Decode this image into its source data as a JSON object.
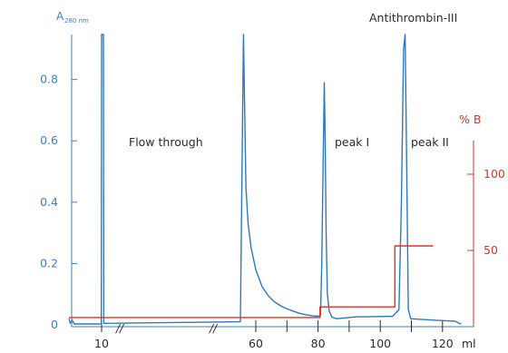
{
  "chart_data": {
    "type": "line",
    "title": "Antithrombin-III",
    "y_left": {
      "label_main": "A",
      "label_sub": "280 nm",
      "ticks": [
        0,
        0.2,
        0.4,
        0.6,
        0.8
      ],
      "tick_labels": [
        "0",
        "0.2",
        "0.4",
        "0.6",
        "0.8"
      ],
      "range": [
        0,
        0.95
      ]
    },
    "y_right": {
      "label": "% B",
      "ticks": [
        50,
        100
      ],
      "tick_labels": [
        "50",
        "100"
      ],
      "range": [
        0,
        122
      ]
    },
    "x_axis": {
      "unit": "ml",
      "tick_labels": [
        {
          "value": 10,
          "label": "10"
        },
        {
          "value": 60,
          "label": "60"
        },
        {
          "value": 80,
          "label": "80"
        },
        {
          "value": 100,
          "label": "100"
        },
        {
          "value": 120,
          "label": "120"
        }
      ],
      "minor_ticks": [
        70,
        90,
        110
      ],
      "break_marks": [
        "//",
        "//"
      ]
    },
    "annotations": [
      {
        "text": "Flow through",
        "x": 27,
        "y": 0.6
      },
      {
        "text": "peak I",
        "x": 83,
        "y": 0.6
      },
      {
        "text": "peak II",
        "x": 107,
        "y": 0.6
      }
    ],
    "series": [
      {
        "axis": "left",
        "color": "#2f78bf",
        "points": [
          [
            -2,
            0.02
          ],
          [
            -1.5,
            0.005
          ],
          [
            -0.8,
            0.015
          ],
          [
            0,
            0.003
          ],
          [
            9.9,
            0.003
          ],
          [
            10,
            0.95
          ],
          [
            10.6,
            0.95
          ],
          [
            10.7,
            0.005
          ],
          [
            55,
            0.01
          ],
          [
            56,
            0.95
          ],
          [
            56.8,
            0.45
          ],
          [
            57.5,
            0.33
          ],
          [
            58.5,
            0.25
          ],
          [
            60,
            0.18
          ],
          [
            62,
            0.125
          ],
          [
            64,
            0.095
          ],
          [
            66,
            0.075
          ],
          [
            68,
            0.062
          ],
          [
            70,
            0.052
          ],
          [
            72,
            0.045
          ],
          [
            74,
            0.038
          ],
          [
            76,
            0.033
          ],
          [
            78,
            0.03
          ],
          [
            80,
            0.028
          ],
          [
            80.8,
            0.03
          ],
          [
            81.2,
            0.2
          ],
          [
            81.6,
            0.5
          ],
          [
            82,
            0.79
          ],
          [
            82.3,
            0.6
          ],
          [
            82.6,
            0.3
          ],
          [
            83,
            0.1
          ],
          [
            83.6,
            0.045
          ],
          [
            84.5,
            0.025
          ],
          [
            86,
            0.02
          ],
          [
            88,
            0.022
          ],
          [
            92,
            0.026
          ],
          [
            98,
            0.027
          ],
          [
            104,
            0.028
          ],
          [
            106,
            0.05
          ],
          [
            106.8,
            0.4
          ],
          [
            107.5,
            0.9
          ],
          [
            108,
            0.95
          ],
          [
            108.5,
            0.5
          ],
          [
            109,
            0.05
          ],
          [
            109.8,
            0.02
          ],
          [
            113,
            0.018
          ],
          [
            118,
            0.015
          ],
          [
            124,
            0.012
          ],
          [
            126,
            0.002
          ]
        ]
      },
      {
        "axis": "right",
        "color": "#e0302b",
        "points": [
          [
            -2,
            6
          ],
          [
            80.6,
            6
          ],
          [
            80.6,
            13
          ],
          [
            104.7,
            13
          ],
          [
            104.7,
            53
          ],
          [
            117,
            53
          ]
        ]
      }
    ]
  }
}
